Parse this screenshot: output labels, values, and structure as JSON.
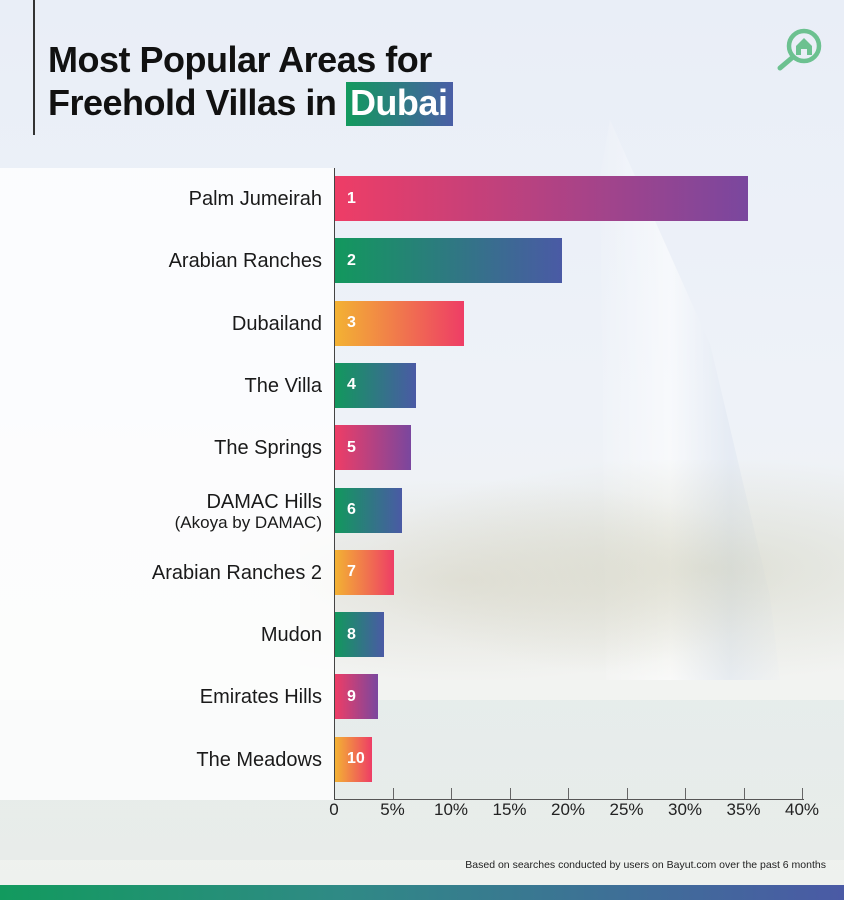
{
  "header": {
    "title_line1": "Most Popular Areas for",
    "title_line2_prefix": "Freehold Villas in",
    "title_highlight": "Dubai",
    "logo_icon": "house-magnifier-icon"
  },
  "footnote": "Based on searches conducted by users on Bayut.com over the past 6 months",
  "colors": {
    "pink_start": "#ee3d66",
    "purple_end": "#7a479e",
    "green_start": "#12985d",
    "blue_end": "#4a5aa5",
    "orange_start": "#f3b233",
    "logo_green": "#6cc190"
  },
  "bars": [
    {
      "rank": "1",
      "label": "Palm Jumeirah",
      "sub": "",
      "value": 35.3,
      "style": "pink"
    },
    {
      "rank": "2",
      "label": "Arabian Ranches",
      "sub": "",
      "value": 19.4,
      "style": "green"
    },
    {
      "rank": "3",
      "label": "Dubailand",
      "sub": "",
      "value": 11.0,
      "style": "orange"
    },
    {
      "rank": "4",
      "label": "The Villa",
      "sub": "",
      "value": 6.9,
      "style": "green"
    },
    {
      "rank": "5",
      "label": "The Springs",
      "sub": "",
      "value": 6.5,
      "style": "pink"
    },
    {
      "rank": "6",
      "label": "DAMAC Hills",
      "sub": "(Akoya by DAMAC)",
      "value": 5.7,
      "style": "green"
    },
    {
      "rank": "7",
      "label": "Arabian Ranches 2",
      "sub": "",
      "value": 5.0,
      "style": "orange"
    },
    {
      "rank": "8",
      "label": "Mudon",
      "sub": "",
      "value": 4.2,
      "style": "green"
    },
    {
      "rank": "9",
      "label": "Emirates Hills",
      "sub": "",
      "value": 3.7,
      "style": "pink"
    },
    {
      "rank": "10",
      "label": "The Meadows",
      "sub": "",
      "value": 3.2,
      "style": "orange"
    }
  ],
  "x_ticks": [
    "0",
    "5%",
    "10%",
    "15%",
    "20%",
    "25%",
    "30%",
    "35%",
    "40%"
  ],
  "chart_data": {
    "type": "bar",
    "orientation": "horizontal",
    "title": "Most Popular Areas for Freehold Villas in Dubai",
    "categories": [
      "Palm Jumeirah",
      "Arabian Ranches",
      "Dubailand",
      "The Villa",
      "The Springs",
      "DAMAC Hills (Akoya by DAMAC)",
      "Arabian Ranches 2",
      "Mudon",
      "Emirates Hills",
      "The Meadows"
    ],
    "values": [
      35.3,
      19.4,
      11.0,
      6.9,
      6.5,
      5.7,
      5.0,
      4.2,
      3.7,
      3.2
    ],
    "data_labels": [
      "1",
      "2",
      "3",
      "4",
      "5",
      "6",
      "7",
      "8",
      "9",
      "10"
    ],
    "xlabel": "",
    "ylabel": "",
    "x_tick_labels": [
      "0",
      "5%",
      "10%",
      "15%",
      "20%",
      "25%",
      "30%",
      "35%",
      "40%"
    ],
    "xlim": [
      0,
      40
    ],
    "unit": "% of searches",
    "grid": false,
    "legend": null,
    "annotation": "Based on searches conducted by users on Bayut.com over the past 6 months"
  }
}
